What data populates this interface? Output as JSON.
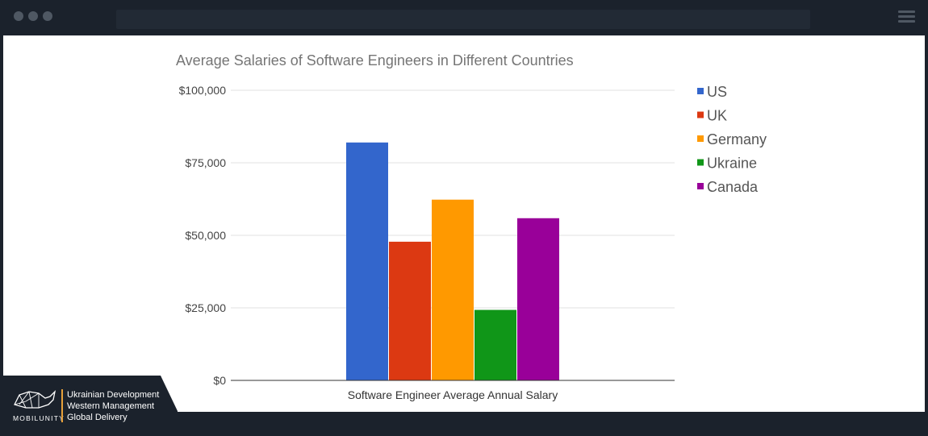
{
  "brand": {
    "name": "MOBILUNITY",
    "taglines": [
      "Ukrainian Development",
      "Western Management",
      "Global Delivery"
    ]
  },
  "chart_data": {
    "type": "bar",
    "title": "Average Salaries of Software Engineers in Different Countries",
    "categories": [
      "Software Engineer Average Annual Salary"
    ],
    "xlabel": "",
    "ylabel": "",
    "ylim": [
      0,
      100000
    ],
    "yticks": [
      0,
      25000,
      50000,
      75000,
      100000
    ],
    "ytick_labels": [
      "$0",
      "$25,000",
      "$50,000",
      "$75,000",
      "$100,000"
    ],
    "grid": true,
    "legend_position": "right",
    "series": [
      {
        "name": "US",
        "color": "#3366cc",
        "values": [
          82000
        ]
      },
      {
        "name": "UK",
        "color": "#dc3912",
        "values": [
          47800
        ]
      },
      {
        "name": "Germany",
        "color": "#ff9900",
        "values": [
          62300
        ]
      },
      {
        "name": "Ukraine",
        "color": "#109618",
        "values": [
          24300
        ]
      },
      {
        "name": "Canada",
        "color": "#990099",
        "values": [
          55900
        ]
      }
    ]
  }
}
